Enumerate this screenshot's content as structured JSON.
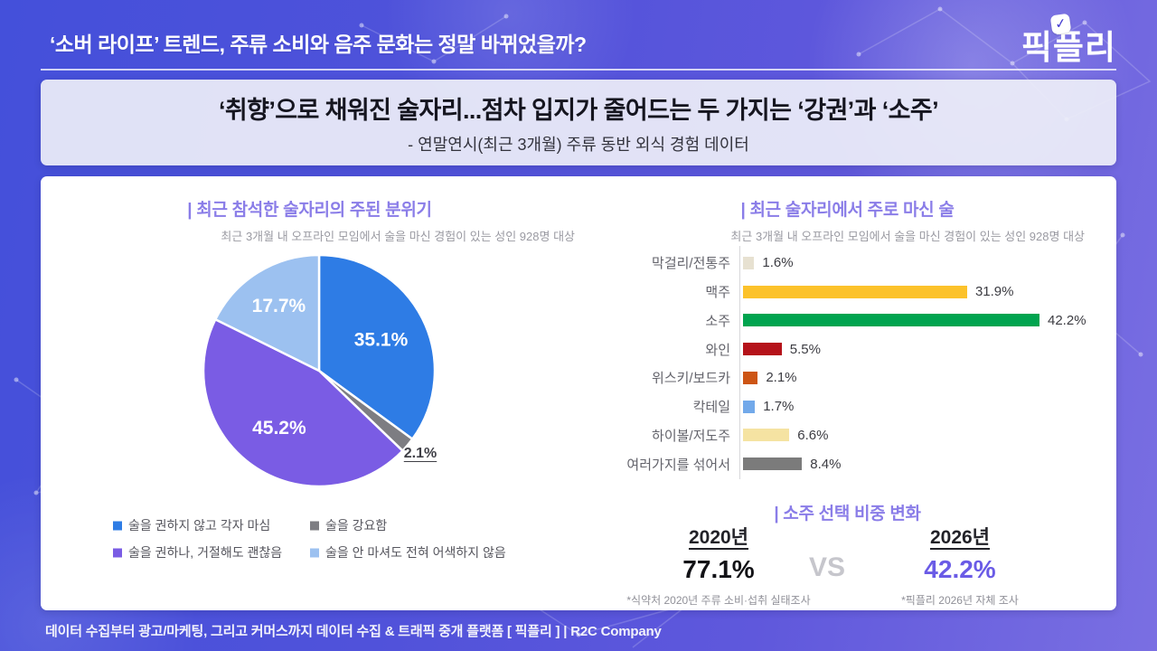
{
  "top_bar": {
    "title": "‘소버 라이프’ 트렌드, 주류 소비와 음주 문화는 정말 바뀌었을까?",
    "logo_text": "픽플리",
    "logo_check_icon": "check-icon"
  },
  "header": {
    "title": "‘취향’으로 채워진 술자리...점차 입지가 줄어드는 두 가지는 ‘강권’과 ‘소주’",
    "subtitle": "- 연말연시(최근 3개월) 주류 동반 외식 경험 데이터"
  },
  "chart_data": [
    {
      "type": "pie",
      "title": "| 최근 참석한 술자리의 주된 분위기",
      "subtitle": "최근 3개월 내 오프라인 모임에서 술을 마신 경험이 있는 성인 928명 대상",
      "legend_position": "bottom",
      "slices": [
        {
          "label": "술을 권하지 않고 각자 마심",
          "value": 35.1,
          "pct": "35.1%",
          "color": "#2e7ce5",
          "label_inside": true
        },
        {
          "label": "술을 강요함",
          "value": 2.1,
          "pct": "2.1%",
          "color": "#7d7d82",
          "label_inside": false
        },
        {
          "label": "술을 권하나, 거절해도 괜찮음",
          "value": 45.2,
          "pct": "45.2%",
          "color": "#7a5ce4",
          "label_inside": true
        },
        {
          "label": "술을 안 마셔도 전혀 어색하지 않음",
          "value": 17.7,
          "pct": "17.7%",
          "color": "#9cc1f0",
          "label_inside": true
        }
      ]
    },
    {
      "type": "bar",
      "title": "| 최근 술자리에서 주로 마신 술",
      "subtitle": "최근 3개월 내 오프라인 모임에서 술을 마신 경험이 있는 성인 928명 대상",
      "orientation": "horizontal",
      "xlim": [
        0,
        45
      ],
      "grid": false,
      "categories": [
        "막걸리/전통주",
        "맥주",
        "소주",
        "와인",
        "위스키/보드카",
        "칵테일",
        "하이볼/저도주",
        "여러가지를 섞어서"
      ],
      "values": [
        1.6,
        31.9,
        42.2,
        5.5,
        2.1,
        1.7,
        6.6,
        8.4
      ],
      "value_labels": [
        "1.6%",
        "31.9%",
        "42.2%",
        "5.5%",
        "2.1%",
        "1.7%",
        "6.6%",
        "8.4%"
      ],
      "colors": [
        "#e7e1d1",
        "#fcc22b",
        "#00a44f",
        "#b5121a",
        "#cd5515",
        "#72a9ea",
        "#f5e3a2",
        "#7b7b7b"
      ]
    }
  ],
  "comparison": {
    "title": "| 소주 선택 비중 변화",
    "vs_label": "VS",
    "left": {
      "year": "2020년",
      "value": "77.1%",
      "note": "*식약처 2020년 주류 소비·섭취 실태조사"
    },
    "right": {
      "year": "2026년",
      "value": "42.2%",
      "note": "*픽플리 2026년 자체 조사"
    }
  },
  "footer": {
    "text": "데이터 수집부터 광고/마케팅, 그리고 커머스까지 데이터 수집 & 트래픽 중개 플랫폼 [ 픽플리 ]  |  R2C Company"
  },
  "colors": {
    "background_start": "#4450da",
    "background_end": "#7a6fe2",
    "accent_purple": "#8a7de8",
    "value_purple": "#6a5be6",
    "card_white": "#ffffff"
  }
}
